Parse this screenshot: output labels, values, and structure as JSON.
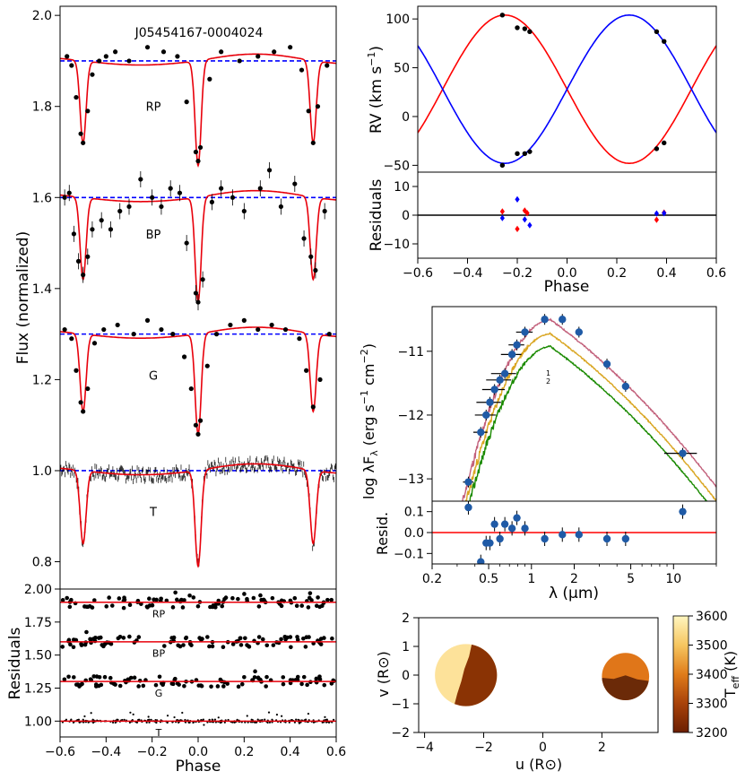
{
  "chart_data": [
    {
      "type": "scatter",
      "panel": "light curves",
      "title": "J05454167-0004024",
      "xlabel": "",
      "ylabel": "Flux (normalized)",
      "xlim": [
        -0.6,
        0.6
      ],
      "ylim": [
        0.74,
        2.02
      ],
      "yticks": [
        "0.8",
        "1.0",
        "1.2",
        "1.4",
        "1.6",
        "1.8",
        "2.0"
      ],
      "grid": false,
      "series": [
        {
          "name": "RP",
          "baseline": 1.9,
          "primary_depth": 0.23,
          "secondary_depth": 0.18,
          "model_color": "#e8000b",
          "reference_color": "#0000ff",
          "x": [
            -0.57,
            -0.55,
            -0.53,
            -0.51,
            -0.5,
            -0.48,
            -0.46,
            -0.43,
            -0.4,
            -0.36,
            -0.3,
            -0.22,
            -0.15,
            -0.09,
            -0.05,
            -0.01,
            0.0,
            0.01,
            0.05,
            0.1,
            0.18,
            0.26,
            0.33,
            0.4,
            0.45,
            0.48,
            0.5,
            0.52,
            0.56
          ],
          "y": [
            1.91,
            1.89,
            1.82,
            1.74,
            1.72,
            1.79,
            1.87,
            1.9,
            1.91,
            1.92,
            1.9,
            1.93,
            1.92,
            1.91,
            1.81,
            1.7,
            1.68,
            1.71,
            1.86,
            1.92,
            1.9,
            1.91,
            1.92,
            1.93,
            1.88,
            1.79,
            1.72,
            1.8,
            1.89
          ]
        },
        {
          "name": "BP",
          "baseline": 1.6,
          "primary_depth": 0.23,
          "secondary_depth": 0.18,
          "model_color": "#e8000b",
          "reference_color": "#0000ff",
          "x": [
            -0.58,
            -0.56,
            -0.54,
            -0.52,
            -0.5,
            -0.48,
            -0.46,
            -0.42,
            -0.38,
            -0.34,
            -0.3,
            -0.25,
            -0.2,
            -0.16,
            -0.12,
            -0.08,
            -0.05,
            -0.01,
            0.0,
            0.02,
            0.06,
            0.1,
            0.15,
            0.2,
            0.27,
            0.31,
            0.36,
            0.42,
            0.46,
            0.49,
            0.51,
            0.55
          ],
          "y": [
            1.6,
            1.61,
            1.52,
            1.46,
            1.43,
            1.47,
            1.53,
            1.55,
            1.53,
            1.57,
            1.58,
            1.64,
            1.6,
            1.58,
            1.62,
            1.61,
            1.5,
            1.39,
            1.37,
            1.42,
            1.59,
            1.62,
            1.6,
            1.57,
            1.62,
            1.66,
            1.58,
            1.63,
            1.51,
            1.47,
            1.44,
            1.57
          ]
        },
        {
          "name": "G",
          "baseline": 1.3,
          "primary_depth": 0.22,
          "secondary_depth": 0.17,
          "model_color": "#e8000b",
          "reference_color": "#0000ff",
          "x": [
            -0.58,
            -0.55,
            -0.53,
            -0.51,
            -0.5,
            -0.48,
            -0.45,
            -0.41,
            -0.35,
            -0.28,
            -0.22,
            -0.16,
            -0.11,
            -0.06,
            -0.03,
            -0.01,
            0.0,
            0.01,
            0.04,
            0.08,
            0.14,
            0.2,
            0.26,
            0.32,
            0.38,
            0.44,
            0.47,
            0.5,
            0.53,
            0.57
          ],
          "y": [
            1.31,
            1.29,
            1.22,
            1.15,
            1.13,
            1.18,
            1.28,
            1.31,
            1.32,
            1.3,
            1.33,
            1.31,
            1.3,
            1.25,
            1.18,
            1.1,
            1.08,
            1.11,
            1.23,
            1.3,
            1.32,
            1.33,
            1.31,
            1.32,
            1.31,
            1.29,
            1.22,
            1.14,
            1.2,
            1.3
          ]
        },
        {
          "name": "T",
          "baseline": 1.0,
          "primary_depth": 0.21,
          "secondary_depth": 0.16,
          "model_color": "#e8000b",
          "reference_color": "#0000ff",
          "x": [],
          "y": []
        }
      ]
    },
    {
      "type": "scatter",
      "panel": "light-curve residuals",
      "xlabel": "Phase",
      "ylabel": "Residuals",
      "xlim": [
        -0.6,
        0.6
      ],
      "ylim": [
        0.88,
        2.0
      ],
      "xticks": [
        "−0.6",
        "−0.4",
        "−0.2",
        "0.0",
        "0.2",
        "0.4",
        "0.6"
      ],
      "yticks": [
        "1.00",
        "1.25",
        "1.50",
        "1.75",
        "2.00"
      ],
      "series": [
        {
          "name": "RP",
          "offset": 1.9
        },
        {
          "name": "BP",
          "offset": 1.6
        },
        {
          "name": "G",
          "offset": 1.3
        },
        {
          "name": "T",
          "offset": 1.0
        }
      ]
    },
    {
      "type": "line",
      "panel": "radial velocity",
      "xlabel": "",
      "ylabel": "RV (km s$^{-1}$)",
      "ylabel_text": "RV (km s",
      "ylabel_unit_exp": "−1",
      "ylabel_close": ")",
      "xlim": [
        -0.6,
        0.6
      ],
      "ylim": [
        -57,
        113
      ],
      "yticks": [
        "−50",
        "0",
        "50",
        "100"
      ],
      "gamma": 28,
      "series": [
        {
          "name": "primary",
          "color": "#ff0000",
          "K": 76,
          "x": [
            -0.26,
            -0.2,
            -0.17,
            -0.15,
            0.36,
            0.39
          ],
          "y": [
            104,
            91,
            90,
            87,
            -33,
            -27
          ]
        },
        {
          "name": "secondary",
          "color": "#0000ff",
          "K": 76,
          "x": [
            -0.26,
            -0.2,
            -0.17,
            -0.15,
            0.36,
            0.39
          ],
          "y": [
            -50,
            -38,
            -38,
            -36,
            87,
            77
          ]
        }
      ]
    },
    {
      "type": "scatter",
      "panel": "RV residuals",
      "xlabel": "Phase",
      "ylabel": "Residuals",
      "xlim": [
        -0.6,
        0.6
      ],
      "ylim": [
        -15,
        15
      ],
      "xticks": [
        "−0.6",
        "−0.4",
        "−0.2",
        "0.0",
        "0.2",
        "0.4",
        "0.6"
      ],
      "yticks": [
        "−10",
        "0",
        "10"
      ],
      "series": [
        {
          "name": "primary",
          "color": "#ff0000",
          "x": [
            -0.26,
            -0.2,
            -0.17,
            -0.16,
            0.36,
            0.39
          ],
          "y": [
            1.3,
            -4.8,
            1.6,
            0.7,
            -1.6,
            0.9
          ]
        },
        {
          "name": "secondary",
          "color": "#0000ff",
          "x": [
            -0.26,
            -0.2,
            -0.17,
            -0.15,
            0.36,
            0.39
          ],
          "y": [
            -1.0,
            5.5,
            -1.5,
            -3.5,
            0.6,
            0.7
          ]
        }
      ]
    },
    {
      "type": "line",
      "panel": "SED",
      "xlabel": "λ (μm)",
      "ylabel": "log λF",
      "ylabel_sub": "λ",
      "ylabel_unit": "(erg s",
      "ylabel_unit_exp1": "−1",
      "ylabel_unit_mid": "cm",
      "ylabel_unit_exp2": "−2",
      "ylabel_close": ")",
      "x_scale": "log",
      "xlim": [
        0.2,
        20
      ],
      "ylim": [
        -13.35,
        -10.3
      ],
      "xticks": [
        "0.2",
        "0.5",
        "1",
        "2",
        "5",
        "10"
      ],
      "yticks": [
        "−11",
        "−12",
        "−13"
      ],
      "component_labels": [
        "1",
        "2"
      ],
      "series": [
        {
          "name": "total",
          "color": "#c2607b"
        },
        {
          "name": "component",
          "color": "#d9a520"
        },
        {
          "name": "component",
          "color": "#1a8a00"
        }
      ],
      "photometry": {
        "color": "#1f5aa6",
        "x": [
          0.36,
          0.44,
          0.48,
          0.51,
          0.55,
          0.6,
          0.65,
          0.73,
          0.79,
          0.9,
          1.24,
          1.65,
          2.16,
          3.4,
          4.6,
          11.6
        ],
        "y": [
          -13.05,
          -12.27,
          -12.0,
          -11.8,
          -11.6,
          -11.45,
          -11.35,
          -11.05,
          -10.9,
          -10.7,
          -10.5,
          -10.5,
          -10.7,
          -11.2,
          -11.55,
          -12.6
        ],
        "xerr": [
          0.03,
          0.05,
          0.08,
          0.1,
          0.1,
          0.12,
          0.13,
          0.12,
          0.1,
          0.12,
          0.0,
          0.0,
          0.0,
          0.0,
          0.0,
          3.0
        ]
      }
    },
    {
      "type": "scatter",
      "panel": "SED residuals",
      "xlabel": "λ (μm)",
      "ylabel": "Resid.",
      "x_scale": "log",
      "xlim": [
        0.2,
        20
      ],
      "ylim": [
        -0.15,
        0.15
      ],
      "xticks": [
        "0.2",
        "0.5",
        "1",
        "2",
        "5",
        "10"
      ],
      "yticks": [
        "0.1",
        "0.0",
        "−0.1"
      ],
      "x": [
        0.36,
        0.44,
        0.48,
        0.51,
        0.55,
        0.6,
        0.65,
        0.73,
        0.79,
        0.9,
        1.24,
        1.65,
        2.16,
        3.4,
        4.6,
        11.6
      ],
      "y": [
        0.12,
        -0.14,
        -0.05,
        -0.05,
        0.04,
        -0.03,
        0.04,
        0.02,
        0.07,
        0.02,
        -0.03,
        -0.01,
        -0.01,
        -0.03,
        -0.03,
        0.1
      ]
    },
    {
      "type": "heatmap",
      "panel": "stellar surfaces",
      "xlabel": "u (R⊙)",
      "ylabel": "v (R⊙)",
      "xlim": [
        -4.2,
        3.9
      ],
      "ylim": [
        -2,
        2
      ],
      "xticks": [
        "−4",
        "−2",
        "0",
        "2"
      ],
      "yticks": [
        "−2",
        "−1",
        "0",
        "1",
        "2"
      ],
      "colorbar_label": "T",
      "colorbar_label_sub": "eff",
      "colorbar_unit": "(K)",
      "colorbar_range": [
        3200,
        3600
      ],
      "colorbar_ticks": [
        "3200",
        "3300",
        "3400",
        "3500",
        "3600"
      ],
      "stars": [
        {
          "center_u": -2.6,
          "center_v": 0.0,
          "radius": 1.05,
          "hot_color": "#fde29a",
          "spot_color": "#8a3304"
        },
        {
          "center_u": 2.8,
          "center_v": -0.05,
          "radius": 0.8,
          "hot_color": "#e07619",
          "spot_color": "#6b2a08"
        }
      ]
    }
  ]
}
